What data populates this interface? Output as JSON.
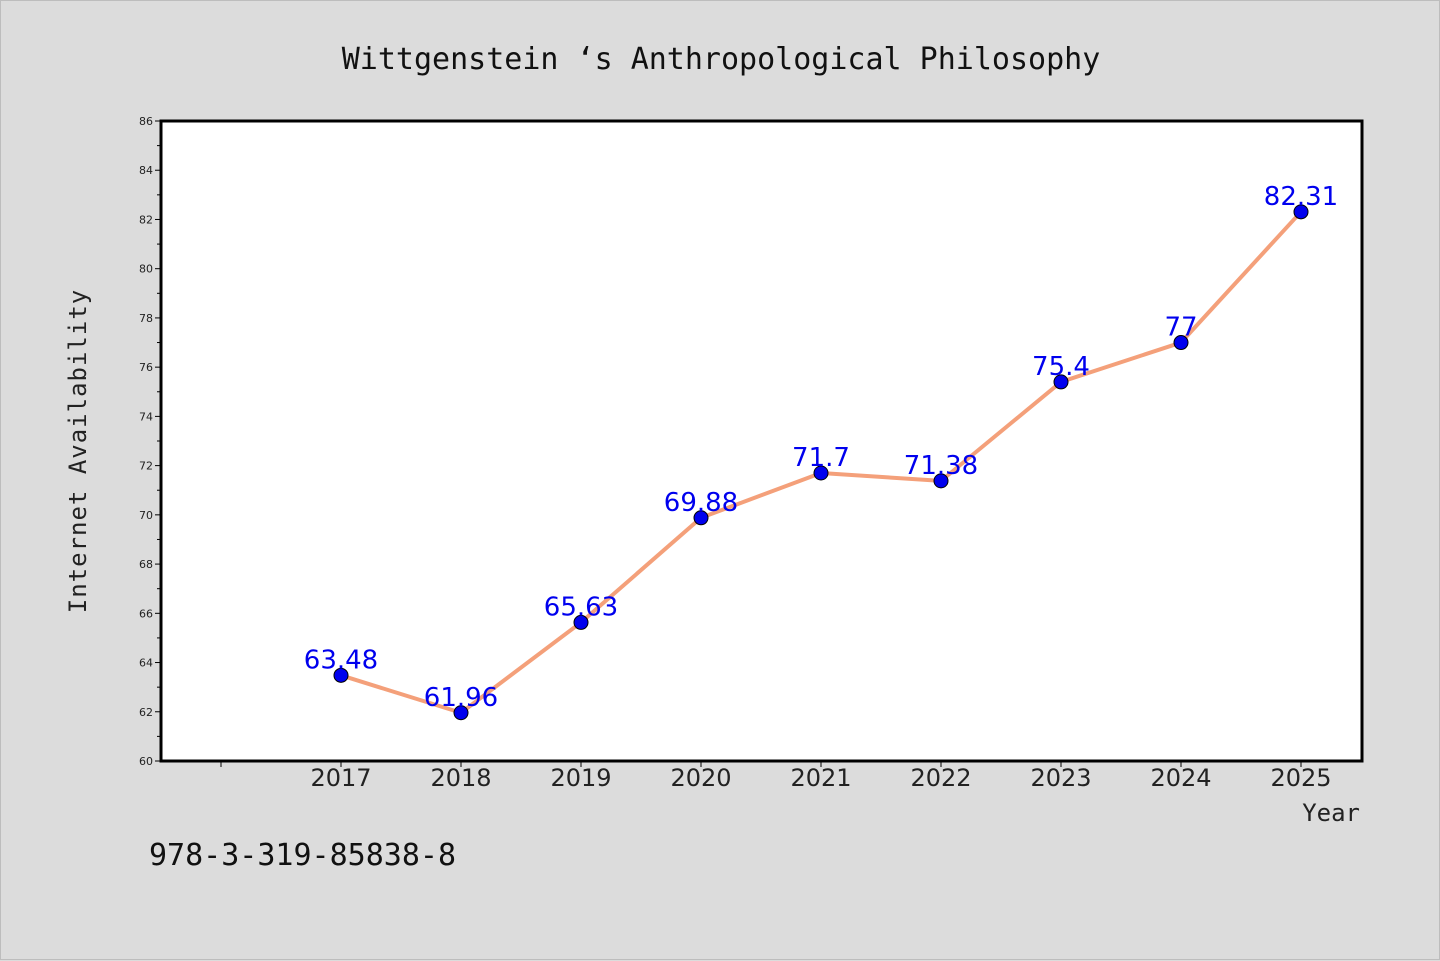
{
  "chart_data": {
    "type": "line",
    "title": "Wittgenstein ‘s Anthropological Philosophy",
    "xlabel": "Year",
    "ylabel": "Internet Availability",
    "categories": [
      "2017",
      "2018",
      "2019",
      "2020",
      "2021",
      "2022",
      "2023",
      "2024",
      "2025"
    ],
    "values": [
      63.48,
      61.96,
      65.63,
      69.88,
      71.7,
      71.38,
      75.4,
      77,
      82.31
    ],
    "data_labels": [
      "63.48",
      "61.96",
      "65.63",
      "69.88",
      "71.7",
      "71.38",
      "75.4",
      "77",
      "82.31"
    ],
    "ylim": [
      60,
      86
    ],
    "yticks": [
      60,
      62,
      64,
      66,
      68,
      70,
      72,
      74,
      76,
      78,
      80,
      82,
      84,
      86
    ],
    "grid": false,
    "line_color": "#f4a07a",
    "marker_color": "#0000ee",
    "label_color": "#0000ee"
  },
  "footer": {
    "isbn": "978-3-319-85838-8"
  }
}
